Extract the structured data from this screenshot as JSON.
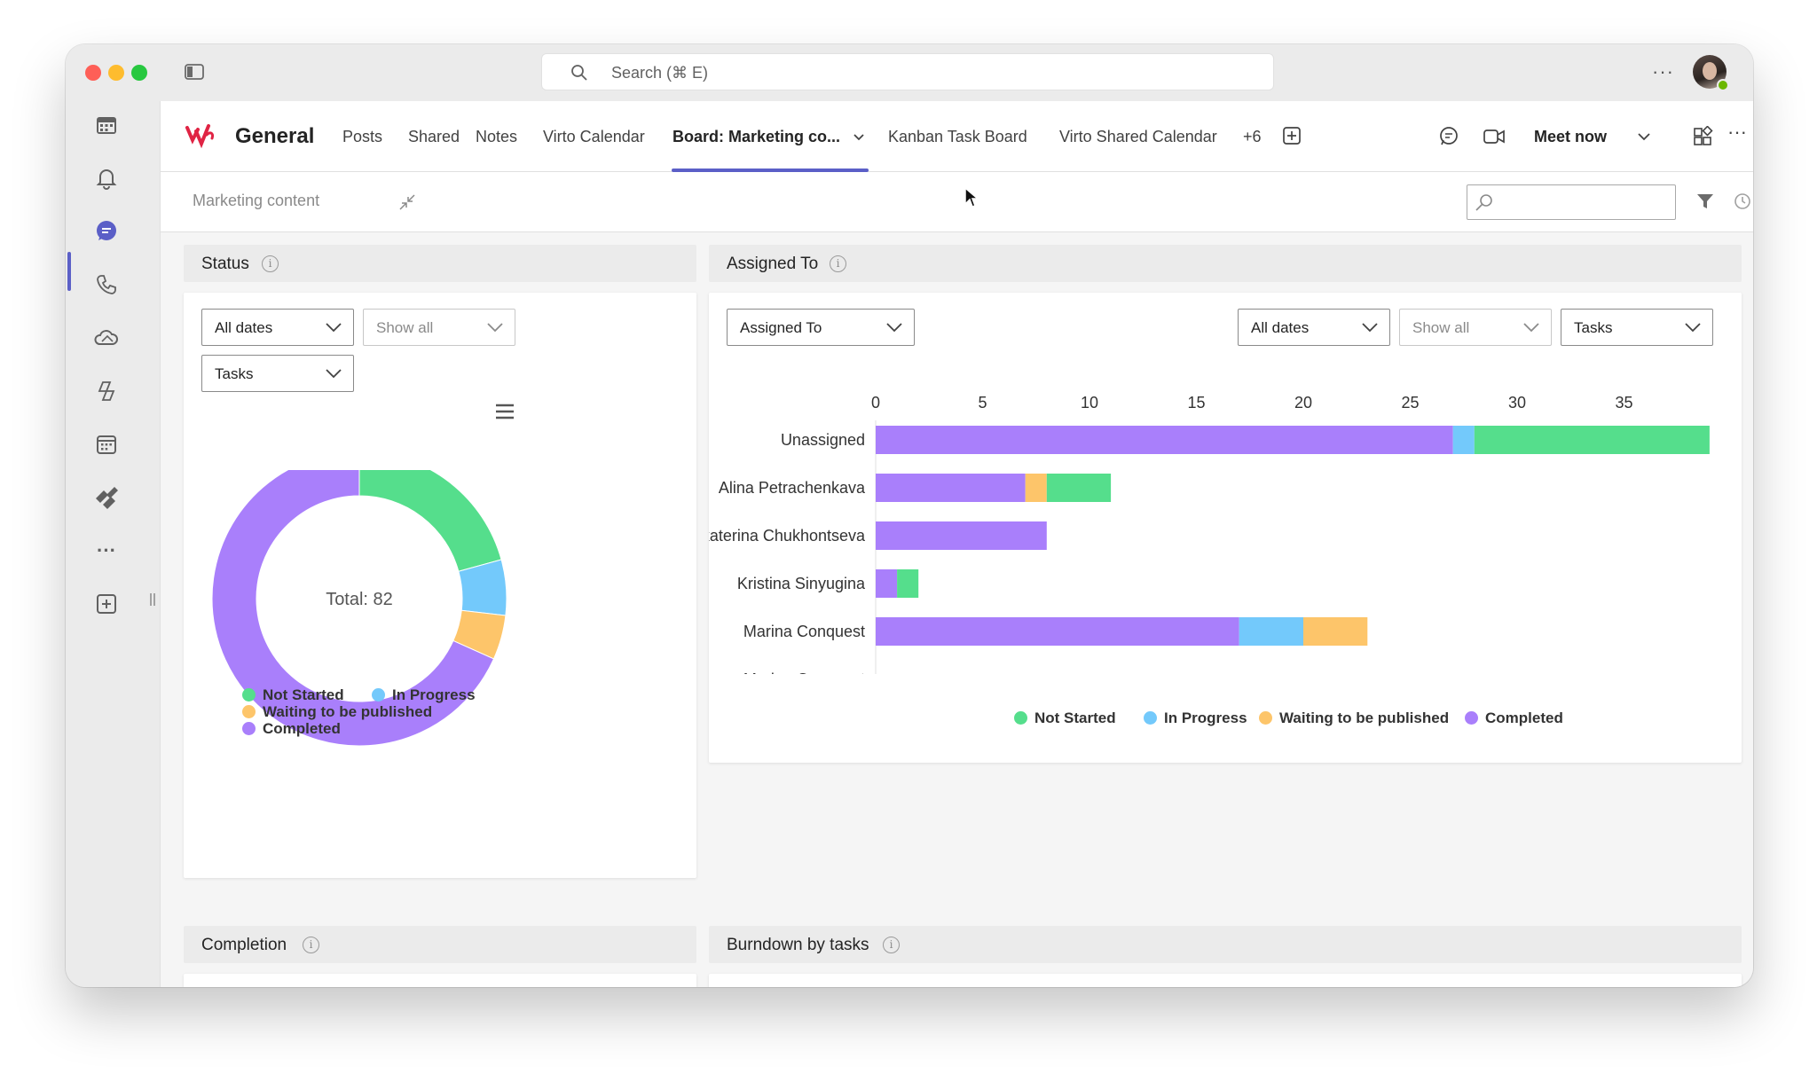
{
  "window": {
    "search_placeholder": "Search (⌘ E)"
  },
  "rail": {
    "items": [
      "calendar-icon",
      "bell-icon",
      "chat-icon",
      "phone-icon",
      "onedrive-icon",
      "copilot-icon",
      "planner-icon",
      "virto-icon",
      "more-icon",
      "add-app-icon"
    ]
  },
  "header": {
    "channel": "General",
    "tabs": [
      {
        "label": "Posts"
      },
      {
        "label": "Shared"
      },
      {
        "label": "Notes"
      },
      {
        "label": "Virto Calendar"
      },
      {
        "label": "Board: Marketing co..."
      },
      {
        "label": "Kanban Task Board"
      },
      {
        "label": "Virto Shared Calendar"
      },
      {
        "label": "+6"
      }
    ],
    "meet_now": "Meet now"
  },
  "toolbar": {
    "board_title": "Marketing content"
  },
  "status_widget": {
    "title": "Status",
    "filters": {
      "dates": "All dates",
      "show": "Show all",
      "type": "Tasks"
    },
    "total_label": "Total: 82"
  },
  "assigned_widget": {
    "title": "Assigned To",
    "filters": {
      "group": "Assigned To",
      "dates": "All dates",
      "show": "Show all",
      "type": "Tasks"
    }
  },
  "completion_widget": {
    "title": "Completion"
  },
  "burndown_widget": {
    "title": "Burndown by tasks"
  },
  "colors": {
    "not_started": "#55de8c",
    "in_progress": "#73c9fb",
    "waiting": "#fdc56a",
    "completed": "#a97ffb",
    "accent": "#5b5fc7"
  },
  "chart_data": [
    {
      "type": "pie",
      "variant": "donut",
      "center_label": "Total: 82",
      "categories": [
        "Not Started",
        "In Progress",
        "Waiting to be published",
        "Completed"
      ],
      "values": [
        17,
        5,
        4,
        56
      ],
      "legend": [
        "Not Started",
        "In Progress",
        "Waiting to be published",
        "Completed"
      ]
    },
    {
      "type": "bar",
      "orientation": "horizontal",
      "stacked": true,
      "categories": [
        "Unassigned",
        "Alina Petrachenkava",
        "Ekaterina Chukhontseva",
        "Kristina Sinyugina",
        "Marina Conquest",
        "Marina Conquest"
      ],
      "series": [
        {
          "name": "Completed",
          "values": [
            27,
            7,
            8,
            1,
            17,
            0
          ]
        },
        {
          "name": "In Progress",
          "values": [
            1,
            0,
            0,
            0,
            3,
            0
          ]
        },
        {
          "name": "Waiting to be published",
          "values": [
            0,
            1,
            0,
            0,
            3,
            0
          ]
        },
        {
          "name": "Not Started",
          "values": [
            11,
            3,
            0,
            1,
            0,
            0
          ]
        }
      ],
      "stack_order": [
        "Completed",
        "In Progress",
        "Waiting to be published",
        "Not Started"
      ],
      "xticks": [
        0,
        5,
        10,
        15,
        20,
        25,
        30,
        35
      ],
      "xlim": [
        0,
        38
      ],
      "legend": [
        "Not Started",
        "In Progress",
        "Waiting to be published",
        "Completed"
      ]
    }
  ]
}
